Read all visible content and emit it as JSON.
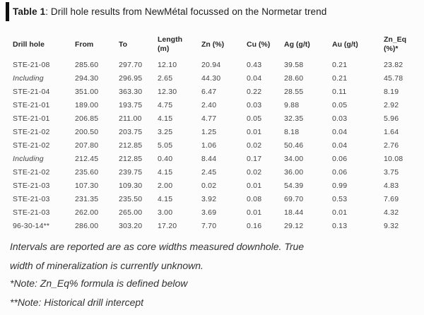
{
  "title": {
    "label": "Table 1",
    "text": ": Drill hole results from NewMétal focussed on the Normetar trend"
  },
  "table": {
    "columns": [
      {
        "label": "Drill hole",
        "lines": [
          "Drill hole"
        ]
      },
      {
        "label": "From",
        "lines": [
          "From"
        ]
      },
      {
        "label": "To",
        "lines": [
          "To"
        ]
      },
      {
        "label": "Length (m)",
        "lines": [
          "Length",
          "(m)"
        ]
      },
      {
        "label": "Zn (%)",
        "lines": [
          "Zn (%)"
        ]
      },
      {
        "label": "Cu (%)",
        "lines": [
          "Cu (%)"
        ]
      },
      {
        "label": "Ag (g/t)",
        "lines": [
          "Ag (g/t)"
        ]
      },
      {
        "label": "Au (g/t)",
        "lines": [
          "Au (g/t)"
        ]
      },
      {
        "label": "Zn_Eq (%)*",
        "lines": [
          "Zn_Eq",
          "(%)*"
        ]
      }
    ],
    "rows": [
      {
        "drill_hole": "STE-21-08",
        "italic": false,
        "values": [
          "285.60",
          "297.70",
          "12.10",
          "20.94",
          "0.43",
          "39.58",
          "0.21",
          "23.82"
        ]
      },
      {
        "drill_hole": "Including",
        "italic": true,
        "values": [
          "294.30",
          "296.95",
          "2.65",
          "44.30",
          "0.04",
          "28.60",
          "0.21",
          "45.78"
        ]
      },
      {
        "drill_hole": "STE-21-04",
        "italic": false,
        "values": [
          "351.00",
          "363.30",
          "12.30",
          "6.47",
          "0.22",
          "28.55",
          "0.11",
          "8.19"
        ]
      },
      {
        "drill_hole": "STE-21-01",
        "italic": false,
        "values": [
          "189.00",
          "193.75",
          "4.75",
          "2.40",
          "0.03",
          "9.88",
          "0.05",
          "2.92"
        ]
      },
      {
        "drill_hole": "STE-21-01",
        "italic": false,
        "values": [
          "206.85",
          "211.00",
          "4.15",
          "4.77",
          "0.05",
          "32.35",
          "0.03",
          "5.96"
        ]
      },
      {
        "drill_hole": "STE-21-02",
        "italic": false,
        "values": [
          "200.50",
          "203.75",
          "3.25",
          "1.25",
          "0.01",
          "8.18",
          "0.04",
          "1.64"
        ]
      },
      {
        "drill_hole": "STE-21-02",
        "italic": false,
        "values": [
          "207.80",
          "212.85",
          "5.05",
          "1.06",
          "0.02",
          "50.46",
          "0.04",
          "2.76"
        ]
      },
      {
        "drill_hole": "Including",
        "italic": true,
        "values": [
          "212.45",
          "212.85",
          "0.40",
          "8.44",
          "0.17",
          "34.00",
          "0.06",
          "10.08"
        ]
      },
      {
        "drill_hole": "STE-21-02",
        "italic": false,
        "values": [
          "235.60",
          "239.75",
          "4.15",
          "2.45",
          "0.02",
          "36.00",
          "0.06",
          "3.75"
        ]
      },
      {
        "drill_hole": "STE-21-03",
        "italic": false,
        "values": [
          "107.30",
          "109.30",
          "2.00",
          "0.02",
          "0.01",
          "54.39",
          "0.99",
          "4.83"
        ]
      },
      {
        "drill_hole": "STE-21-03",
        "italic": false,
        "values": [
          "231.35",
          "235.50",
          "4.15",
          "3.92",
          "0.08",
          "69.70",
          "0.53",
          "7.69"
        ]
      },
      {
        "drill_hole": "STE-21-03",
        "italic": false,
        "values": [
          "262.00",
          "265.00",
          "3.00",
          "3.69",
          "0.01",
          "18.44",
          "0.01",
          "4.32"
        ]
      },
      {
        "drill_hole": "96-30-14**",
        "italic": false,
        "values": [
          "286.00",
          "303.20",
          "17.20",
          "7.70",
          "0.16",
          "29.12",
          "0.13",
          "9.32"
        ]
      }
    ]
  },
  "notes": [
    "Intervals are reported are as core widths measured downhole. True width of mineralization is currently unknown.",
    "*Note: Zn_Eq% formula is defined below",
    "**Note: Historical drill intercept"
  ],
  "colors": {
    "accent_bar": "#0f0f0f",
    "title_text": "#1c1c1c",
    "header_text": "#272727",
    "body_text": "#424242",
    "background": "#fcfcfc"
  }
}
